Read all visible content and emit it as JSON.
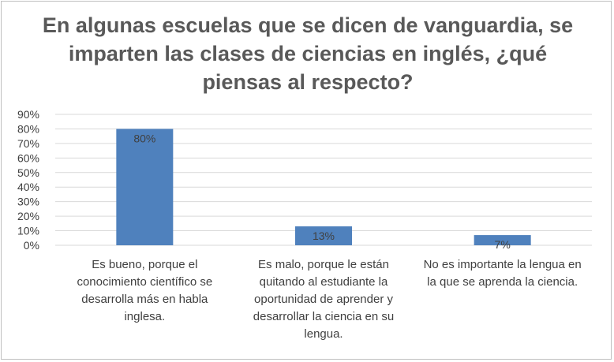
{
  "chart_data": {
    "type": "bar",
    "title": "En algunas escuelas que se dicen de vanguardia, se imparten las clases de ciencias en inglés, ¿qué piensas al respecto?",
    "categories": [
      "Es bueno, porque el conocimiento científico se desarrolla más en habla inglesa.",
      "Es malo, porque le están quitando al estudiante la oportunidad de aprender y desarrollar la ciencia en su lengua.",
      "No es importante la lengua en la que se aprenda la ciencia."
    ],
    "values": [
      80,
      13,
      7
    ],
    "data_labels": [
      "80%",
      "13%",
      "7%"
    ],
    "ylim": [
      0,
      90
    ],
    "yticks": [
      "0%",
      "10%",
      "20%",
      "30%",
      "40%",
      "50%",
      "60%",
      "70%",
      "80%",
      "90%"
    ],
    "grid": true,
    "bar_color": "#4f81bd"
  }
}
